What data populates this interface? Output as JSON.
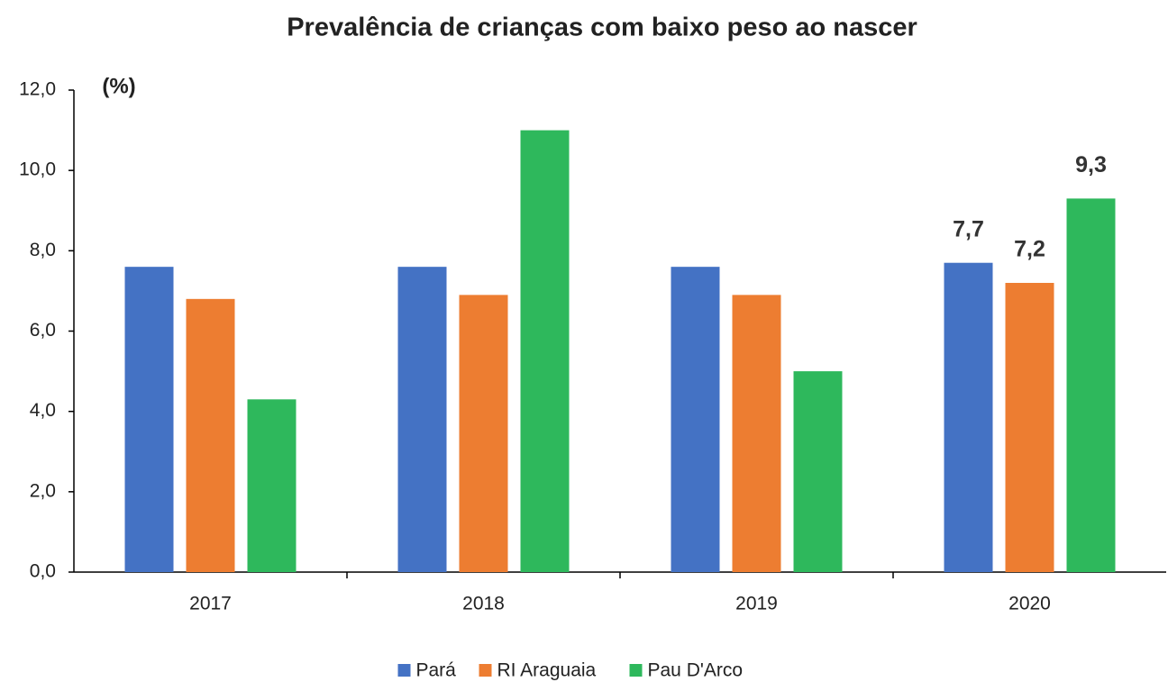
{
  "chart_data": {
    "type": "bar",
    "title": "Prevalência de crianças com baixo peso ao nascer",
    "y_axis_label": "(%)",
    "categories": [
      "2017",
      "2018",
      "2019",
      "2020"
    ],
    "series": [
      {
        "name": "Pará",
        "color": "#4472c4",
        "values": [
          7.6,
          7.6,
          7.6,
          7.7
        ],
        "value_labels": [
          null,
          null,
          null,
          "7,7"
        ]
      },
      {
        "name": "RI Araguaia",
        "color": "#ed7d31",
        "values": [
          6.8,
          6.9,
          6.9,
          7.2
        ],
        "value_labels": [
          null,
          null,
          null,
          "7,2"
        ]
      },
      {
        "name": "Pau D'Arco",
        "color": "#2eb85c",
        "values": [
          4.3,
          11.0,
          5.0,
          9.3
        ],
        "value_labels": [
          null,
          null,
          null,
          "9,3"
        ]
      }
    ],
    "ylim": [
      0,
      12
    ],
    "yticks": [
      {
        "value": 0,
        "label": "0,0"
      },
      {
        "value": 2,
        "label": "2,0"
      },
      {
        "value": 4,
        "label": "4,0"
      },
      {
        "value": 6,
        "label": "6,0"
      },
      {
        "value": 8,
        "label": "8,0"
      },
      {
        "value": 10,
        "label": "10,0"
      },
      {
        "value": 12,
        "label": "12,0"
      }
    ],
    "grid": false,
    "legend": "bottom"
  }
}
